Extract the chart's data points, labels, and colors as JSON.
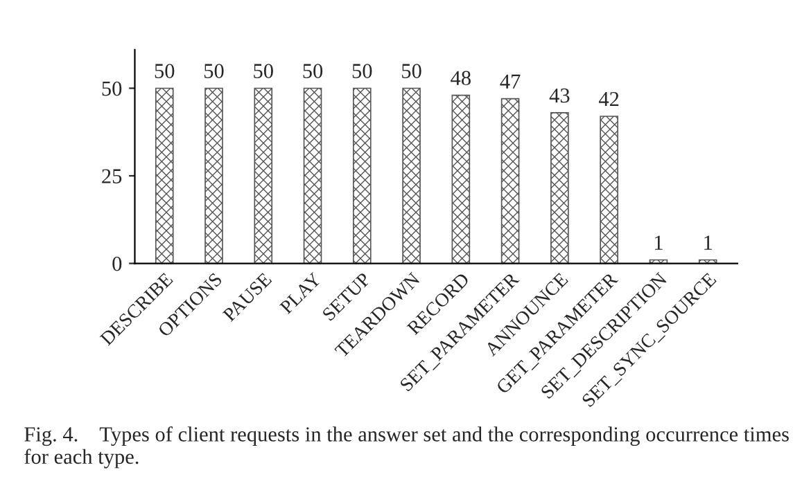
{
  "chart_data": {
    "type": "bar",
    "categories": [
      "DESCRIBE",
      "OPTIONS",
      "PAUSE",
      "PLAY",
      "SETUP",
      "TEARDOWN",
      "RECORD",
      "SET_PARAMETER",
      "ANNOUNCE",
      "GET_PARAMETER",
      "SET_DESCRIPTION",
      "SET_SYNC_SOURCE"
    ],
    "values": [
      50,
      50,
      50,
      50,
      50,
      50,
      48,
      47,
      43,
      42,
      1,
      1
    ],
    "color": "#555555",
    "ylim": [
      0,
      61
    ],
    "yticks": [
      0,
      25,
      50
    ],
    "data_labels": true,
    "grid": false,
    "annotations": [
      "Fig. 4.    Types of client requests in the answer set and the corresponding occurrence times for each type."
    ]
  }
}
